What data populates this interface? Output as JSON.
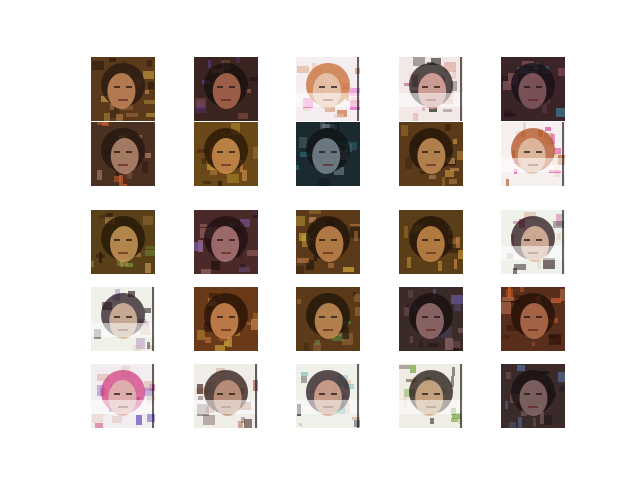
{
  "figure": {
    "grid": {
      "rows": 5,
      "cols": 5
    },
    "samples": [
      {
        "style": "dark",
        "bg": "#5a3a1a",
        "face": "#c88a5a",
        "hair": "#2a1a10",
        "accent": "#d8b048"
      },
      {
        "style": "dark",
        "bg": "#3a2420",
        "face": "#b06a50",
        "hair": "#1a1010",
        "accent": "#6a40a0"
      },
      {
        "style": "light",
        "bg": "#f4eef0",
        "face": "#e8c8b0",
        "hair": "#c86a30",
        "accent": "#e040c0"
      },
      {
        "style": "light",
        "bg": "#f2e8e6",
        "face": "#e0a8a0",
        "hair": "#201818",
        "accent": "#a83060"
      },
      {
        "style": "dark",
        "bg": "#3a2428",
        "face": "#8a5a60",
        "hair": "#1a1018",
        "accent": "#40a0c0"
      },
      {
        "style": "dark",
        "bg": "#4a3020",
        "face": "#b88a70",
        "hair": "#241810",
        "accent": "#d06030"
      },
      {
        "style": "dark",
        "bg": "#6a4818",
        "face": "#d09050",
        "hair": "#2a1808",
        "accent": "#e0b838"
      },
      {
        "style": "dark",
        "bg": "#1a2a30",
        "face": "#7a8890",
        "hair": "#101418",
        "accent": "#307888"
      },
      {
        "style": "dark",
        "bg": "#5a3a18",
        "face": "#c89058",
        "hair": "#24160a",
        "accent": "#d8a040"
      },
      {
        "style": "light",
        "bg": "#f6f0ee",
        "face": "#e0c0a8",
        "hair": "#b05020",
        "accent": "#e030a0"
      },
      {
        "style": "dark",
        "bg": "#5a4018",
        "face": "#c89858",
        "hair": "#241808",
        "accent": "#70a040"
      },
      {
        "style": "dark",
        "bg": "#4a2a28",
        "face": "#b07878",
        "hair": "#201010",
        "accent": "#8060b0"
      },
      {
        "style": "dark",
        "bg": "#5a3a18",
        "face": "#c88850",
        "hair": "#20140a",
        "accent": "#d8b040"
      },
      {
        "style": "dark",
        "bg": "#5a3e18",
        "face": "#c88a4a",
        "hair": "#221408",
        "accent": "#e0a838"
      },
      {
        "style": "light",
        "bg": "#eef2ea",
        "face": "#e0b8a0",
        "hair": "#2a1418",
        "accent": "#c02080"
      },
      {
        "style": "light",
        "bg": "#f0f2ea",
        "face": "#d8b8a0",
        "hair": "#2a1a20",
        "accent": "#9060b0"
      },
      {
        "style": "dark",
        "bg": "#6a3a18",
        "face": "#d08850",
        "hair": "#2a1408",
        "accent": "#d8b040"
      },
      {
        "style": "dark",
        "bg": "#5a3a18",
        "face": "#c89058",
        "hair": "#22160a",
        "accent": "#60a050"
      },
      {
        "style": "dark",
        "bg": "#3a2a28",
        "face": "#9a7070",
        "hair": "#1a1010",
        "accent": "#6a5aa0"
      },
      {
        "style": "dark",
        "bg": "#5a2e1c",
        "face": "#b87050",
        "hair": "#241008",
        "accent": "#d06030"
      },
      {
        "style": "light",
        "bg": "#f2eef0",
        "face": "#e0b8b0",
        "hair": "#d04080",
        "accent": "#6040c0"
      },
      {
        "style": "light",
        "bg": "#f0ece8",
        "face": "#c89880",
        "hair": "#2a1410",
        "accent": "#a05030"
      },
      {
        "style": "light",
        "bg": "#eef0ea",
        "face": "#d8a890",
        "hair": "#24141a",
        "accent": "#40a0a0"
      },
      {
        "style": "light",
        "bg": "#f0eee4",
        "face": "#d8b088",
        "hair": "#201410",
        "accent": "#70a040"
      },
      {
        "style": "dark",
        "bg": "#3a2a2a",
        "face": "#8a6a6a",
        "hair": "#1a1212",
        "accent": "#5a7ab0"
      }
    ]
  }
}
